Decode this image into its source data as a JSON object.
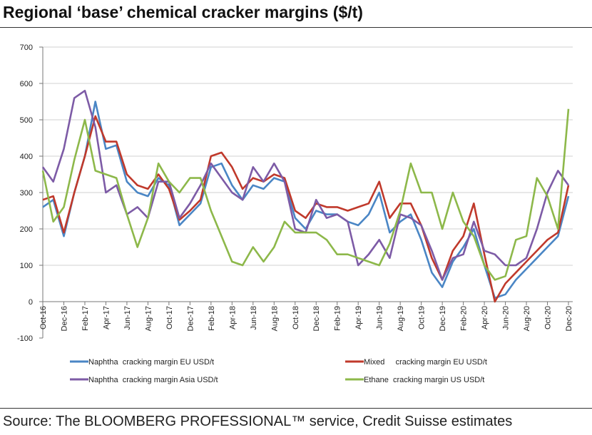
{
  "chart_data": {
    "type": "line",
    "title": "Regional ‘base’ chemical cracker margins ($/t)",
    "source": "Source: The BLOOMBERG PROFESSIONAL™ service, Credit Suisse estimates",
    "xlabel": "",
    "ylabel": "",
    "ylim": [
      -100,
      700
    ],
    "yticks": [
      -100,
      0,
      100,
      200,
      300,
      400,
      500,
      600,
      700
    ],
    "grid": true,
    "legend_placement": "bottom",
    "x_tick_labels": [
      "Oct-16",
      "Dec-16",
      "Feb-17",
      "Apr-17",
      "Jun-17",
      "Aug-17",
      "Oct-17",
      "Dec-17",
      "Feb-18",
      "Apr-18",
      "Jun-18",
      "Aug-18",
      "Oct-18",
      "Dec-18",
      "Feb-19",
      "Apr-19",
      "Jun-19",
      "Aug-19",
      "Oct-19",
      "Dec-19",
      "Feb-20",
      "Apr-20",
      "Jun-20",
      "Aug-20",
      "Oct-20",
      "Dec-20"
    ],
    "x_months_from_oct16": [
      0,
      1,
      2,
      3,
      4,
      5,
      6,
      7,
      8,
      9,
      10,
      11,
      12,
      13,
      14,
      15,
      16,
      17,
      18,
      19,
      20,
      21,
      22,
      23,
      24,
      25,
      26,
      27,
      28,
      29,
      30,
      31,
      32,
      33,
      34,
      35,
      36,
      37,
      38,
      39,
      40,
      41,
      42,
      43,
      44,
      45,
      46,
      47,
      48,
      49,
      50
    ],
    "series": [
      {
        "name": "Naphtha  cracking margin EU USD/t",
        "color": "#4a86c5",
        "values": [
          260,
          280,
          180,
          300,
          400,
          550,
          420,
          430,
          330,
          300,
          290,
          340,
          320,
          210,
          240,
          270,
          370,
          380,
          320,
          280,
          320,
          310,
          340,
          330,
          230,
          200,
          250,
          240,
          240,
          220,
          210,
          240,
          300,
          190,
          220,
          240,
          170,
          80,
          40,
          110,
          150,
          200,
          100,
          10,
          20,
          60,
          90,
          120,
          150,
          180,
          290
        ]
      },
      {
        "name": "Mixed     cracking margin EU USD/t",
        "color": "#c0392b",
        "values": [
          280,
          290,
          190,
          300,
          400,
          510,
          440,
          440,
          350,
          320,
          310,
          350,
          310,
          225,
          250,
          280,
          400,
          410,
          370,
          310,
          340,
          330,
          350,
          340,
          250,
          230,
          270,
          260,
          260,
          250,
          260,
          270,
          330,
          230,
          270,
          270,
          210,
          120,
          60,
          140,
          180,
          270,
          130,
          0,
          50,
          80,
          110,
          140,
          170,
          190,
          320
        ]
      },
      {
        "name": "Naphtha  cracking margin Asia USD/t",
        "color": "#7d5ba6",
        "values": [
          370,
          330,
          420,
          560,
          580,
          480,
          300,
          320,
          240,
          260,
          230,
          330,
          330,
          230,
          270,
          320,
          380,
          340,
          300,
          280,
          370,
          330,
          380,
          330,
          200,
          190,
          280,
          230,
          240,
          220,
          100,
          130,
          170,
          120,
          240,
          230,
          210,
          140,
          60,
          120,
          130,
          220,
          140,
          130,
          100,
          100,
          120,
          200,
          300,
          360,
          320
        ]
      },
      {
        "name": "Ethane  cracking margin US USD/t",
        "color": "#8db84a",
        "values": [
          360,
          220,
          260,
          390,
          500,
          360,
          350,
          340,
          240,
          150,
          230,
          380,
          330,
          300,
          340,
          340,
          250,
          180,
          110,
          100,
          150,
          110,
          150,
          220,
          190,
          190,
          190,
          170,
          130,
          130,
          120,
          110,
          100,
          160,
          250,
          380,
          300,
          300,
          200,
          300,
          220,
          180,
          100,
          60,
          70,
          170,
          180,
          340,
          290,
          200,
          530
        ]
      }
    ]
  }
}
